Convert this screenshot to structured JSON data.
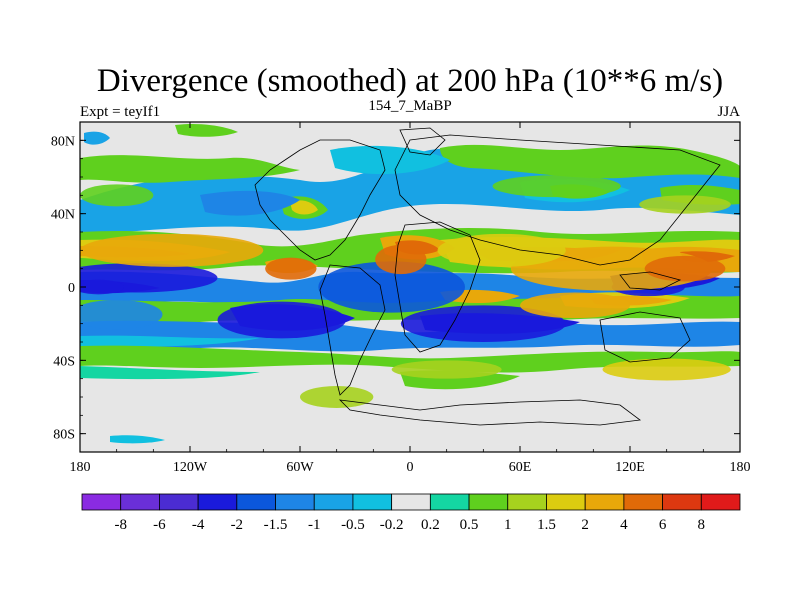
{
  "chart_data": {
    "type": "heatmap",
    "title": "Divergence (smoothed) at 200 hPa (10**6 m/s)",
    "subtitle_left": "Expt = teyIf1",
    "subtitle_center": "154_7_MaBP",
    "subtitle_right": "JJA",
    "x_range": [
      -180,
      180
    ],
    "y_range": [
      -90,
      90
    ],
    "x_ticks": [
      {
        "value": -180,
        "label": "180"
      },
      {
        "value": -120,
        "label": "120W"
      },
      {
        "value": -60,
        "label": "60W"
      },
      {
        "value": 0,
        "label": "0"
      },
      {
        "value": 60,
        "label": "60E"
      },
      {
        "value": 120,
        "label": "120E"
      },
      {
        "value": 180,
        "label": "180"
      }
    ],
    "y_ticks": [
      {
        "value": 80,
        "label": "80N"
      },
      {
        "value": 40,
        "label": "40N"
      },
      {
        "value": 0,
        "label": "0"
      },
      {
        "value": -40,
        "label": "40S"
      },
      {
        "value": -80,
        "label": "80S"
      }
    ],
    "colorbar_levels": [
      "-8",
      "-6",
      "-4",
      "-2",
      "-1.5",
      "-1",
      "-0.5",
      "-0.2",
      "0.2",
      "0.5",
      "1",
      "1.5",
      "2",
      "4",
      "6",
      "8"
    ],
    "colorbar_colors": [
      "#8a2be2",
      "#6a2fd8",
      "#4b2cd2",
      "#1a1adb",
      "#0b57dc",
      "#1e85e6",
      "#19a3e6",
      "#11c0e0",
      "#e6e6e6",
      "#14d6a2",
      "#5fd01e",
      "#a6d21e",
      "#dccc10",
      "#e8a80a",
      "#e06a08",
      "#dd3810",
      "#e01a1a"
    ],
    "field_patches": [
      {
        "lon": -150,
        "lat": 5,
        "rx": 45,
        "ry": 8,
        "cls": 3
      },
      {
        "lon": -170,
        "lat": 0,
        "rx": 14,
        "ry": 4,
        "cls": 3
      },
      {
        "lon": -130,
        "lat": 20,
        "rx": 50,
        "ry": 9,
        "cls": 13
      },
      {
        "lon": -160,
        "lat": -15,
        "rx": 25,
        "ry": 8,
        "cls": 5
      },
      {
        "lon": -70,
        "lat": -18,
        "rx": 35,
        "ry": 10,
        "cls": 3
      },
      {
        "lon": -10,
        "lat": 0,
        "rx": 40,
        "ry": 14,
        "cls": 4
      },
      {
        "lon": 40,
        "lat": -20,
        "rx": 45,
        "ry": 10,
        "cls": 3
      },
      {
        "lon": 130,
        "lat": 0,
        "rx": 20,
        "ry": 5,
        "cls": 3
      },
      {
        "lon": 110,
        "lat": 10,
        "rx": 55,
        "ry": 12,
        "cls": 13
      },
      {
        "lon": 150,
        "lat": 10,
        "rx": 22,
        "ry": 7,
        "cls": 14
      },
      {
        "lon": 50,
        "lat": 20,
        "rx": 35,
        "ry": 9,
        "cls": 12
      },
      {
        "lon": -5,
        "lat": 15,
        "rx": 14,
        "ry": 8,
        "cls": 14
      },
      {
        "lon": -65,
        "lat": 10,
        "rx": 14,
        "ry": 6,
        "cls": 14
      },
      {
        "lon": 90,
        "lat": -10,
        "rx": 30,
        "ry": 7,
        "cls": 13
      },
      {
        "lon": -160,
        "lat": 50,
        "rx": 20,
        "ry": 6,
        "cls": 10
      },
      {
        "lon": 80,
        "lat": 55,
        "rx": 35,
        "ry": 6,
        "cls": 10
      },
      {
        "lon": 150,
        "lat": 45,
        "rx": 25,
        "ry": 5,
        "cls": 11
      },
      {
        "lon": -40,
        "lat": -60,
        "rx": 20,
        "ry": 6,
        "cls": 11
      },
      {
        "lon": 20,
        "lat": -45,
        "rx": 30,
        "ry": 5,
        "cls": 11
      },
      {
        "lon": 140,
        "lat": -45,
        "rx": 35,
        "ry": 6,
        "cls": 12
      }
    ]
  }
}
